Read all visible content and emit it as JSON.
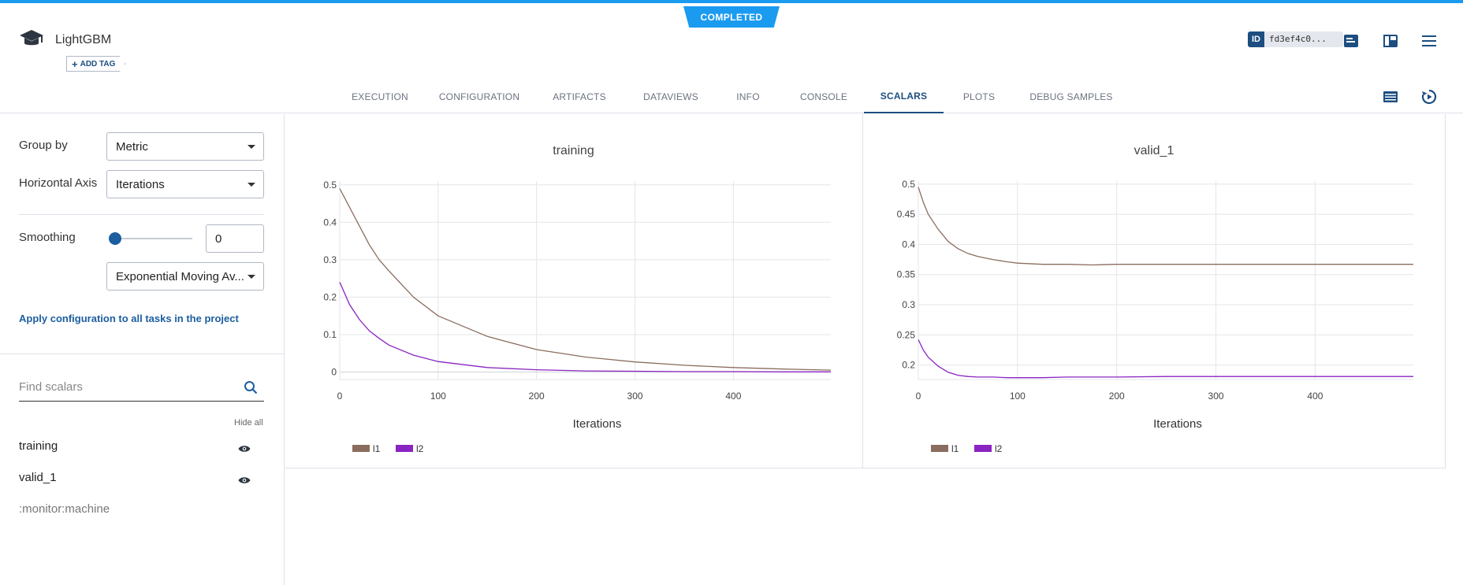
{
  "status": "COMPLETED",
  "task": {
    "name": "LightGBM",
    "add_tag": "ADD TAG",
    "id_label": "ID",
    "id_value": "fd3ef4c0..."
  },
  "tabs": [
    "EXECUTION",
    "CONFIGURATION",
    "ARTIFACTS",
    "DATAVIEWS",
    "INFO",
    "CONSOLE",
    "SCALARS",
    "PLOTS",
    "DEBUG SAMPLES"
  ],
  "active_tab": "SCALARS",
  "sidebar": {
    "group_by_label": "Group by",
    "group_by_value": "Metric",
    "horizontal_axis_label": "Horizontal Axis",
    "horizontal_axis_value": "Iterations",
    "smoothing_label": "Smoothing",
    "smoothing_value": "0",
    "smoothing_slider_fraction": 0,
    "smoothing_method": "Exponential Moving Av...",
    "apply_link": "Apply configuration to all tasks in the project",
    "find_placeholder": "Find scalars",
    "hide_all": "Hide all",
    "metrics": [
      "training",
      "valid_1"
    ],
    "other_metric": ":monitor:machine"
  },
  "colors": {
    "accent": "#1a9bf0",
    "brand": "#1c4e80",
    "l1": "#8a6d5e",
    "l2": "#8a24c2"
  },
  "chart_data": [
    {
      "type": "line",
      "title": "training",
      "xlabel": "Iterations",
      "ylabel": "",
      "xlim": [
        0,
        499
      ],
      "ylim": [
        -0.02,
        0.51
      ],
      "xticks": [
        0,
        100,
        200,
        300,
        400
      ],
      "yticks": [
        0,
        0.1,
        0.2,
        0.3,
        0.4,
        0.5
      ],
      "ytick_labels": [
        "0",
        "0.1",
        "0.2",
        "0.3",
        "0.4",
        "0.5"
      ],
      "legend": "bottom-left",
      "x": [
        0,
        10,
        20,
        30,
        40,
        50,
        75,
        100,
        150,
        200,
        250,
        300,
        350,
        400,
        450,
        499
      ],
      "series": [
        {
          "name": "l1",
          "values": [
            0.49,
            0.44,
            0.39,
            0.34,
            0.3,
            0.27,
            0.2,
            0.15,
            0.095,
            0.06,
            0.04,
            0.027,
            0.018,
            0.012,
            0.008,
            0.005
          ]
        },
        {
          "name": "l2",
          "values": [
            0.24,
            0.18,
            0.14,
            0.11,
            0.09,
            0.072,
            0.045,
            0.028,
            0.012,
            0.006,
            0.003,
            0.002,
            0.001,
            0.001,
            0.0005,
            0.0003
          ]
        }
      ]
    },
    {
      "type": "line",
      "title": "valid_1",
      "xlabel": "Iterations",
      "ylabel": "",
      "xlim": [
        0,
        499
      ],
      "ylim": [
        0.176,
        0.505
      ],
      "xticks": [
        0,
        100,
        200,
        300,
        400
      ],
      "yticks": [
        0.2,
        0.25,
        0.3,
        0.35,
        0.4,
        0.45,
        0.5
      ],
      "ytick_labels": [
        "0.2",
        "0.25",
        "0.3",
        "0.35",
        "0.4",
        "0.45",
        "0.5"
      ],
      "legend": "bottom-left",
      "x": [
        0,
        5,
        10,
        20,
        30,
        40,
        50,
        60,
        75,
        90,
        100,
        125,
        150,
        175,
        200,
        250,
        300,
        350,
        400,
        450,
        499
      ],
      "series": [
        {
          "name": "l1",
          "values": [
            0.495,
            0.47,
            0.45,
            0.425,
            0.405,
            0.393,
            0.385,
            0.38,
            0.375,
            0.371,
            0.369,
            0.367,
            0.367,
            0.366,
            0.367,
            0.367,
            0.367,
            0.367,
            0.367,
            0.367,
            0.367
          ]
        },
        {
          "name": "l2",
          "values": [
            0.242,
            0.225,
            0.213,
            0.198,
            0.188,
            0.183,
            0.181,
            0.18,
            0.18,
            0.179,
            0.179,
            0.179,
            0.18,
            0.18,
            0.18,
            0.181,
            0.181,
            0.181,
            0.181,
            0.181,
            0.181
          ]
        }
      ]
    }
  ]
}
